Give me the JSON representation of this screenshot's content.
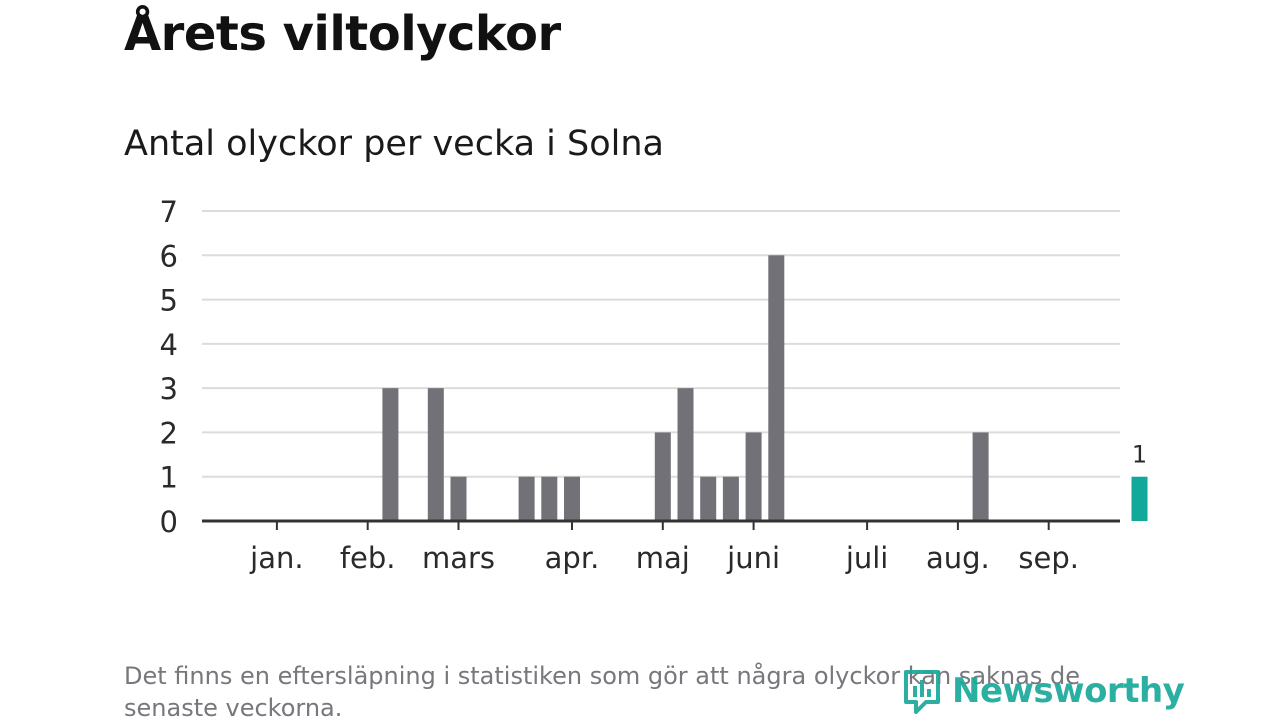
{
  "header": {
    "title": "Årets viltolyckor",
    "subtitle": "Antal olyckor per vecka i Solna"
  },
  "footer": {
    "note": "Det finns en eftersläpning i statistiken som gör att några olyckor kan saknas de senaste veckorna.",
    "logo_text": "Newsworthy"
  },
  "colors": {
    "bar": "#717177",
    "highlight": "#12a89a",
    "grid": "#dcdcdc",
    "axis": "#333333"
  },
  "chart_data": {
    "type": "bar",
    "x_unit": "week",
    "weeks": [
      1,
      2,
      3,
      4,
      5,
      6,
      7,
      8,
      9,
      10,
      11,
      12,
      13,
      14,
      15,
      16,
      17,
      18,
      19,
      20,
      21,
      22,
      23,
      24,
      25,
      26,
      27,
      28,
      29,
      30,
      31,
      32,
      33,
      34,
      35,
      36,
      37,
      38,
      39,
      40,
      41
    ],
    "values": [
      0,
      0,
      0,
      0,
      0,
      0,
      0,
      3,
      0,
      3,
      1,
      0,
      0,
      1,
      1,
      1,
      0,
      0,
      0,
      2,
      3,
      1,
      1,
      2,
      6,
      0,
      0,
      0,
      0,
      0,
      0,
      0,
      0,
      2,
      0,
      0,
      0,
      0,
      0,
      0,
      1
    ],
    "highlight_index": 40,
    "data_labels": [
      {
        "week": 41,
        "text": "1"
      }
    ],
    "y_ticks": [
      "0",
      "1",
      "2",
      "3",
      "4",
      "5",
      "6",
      "7"
    ],
    "ylim": [
      0,
      7
    ],
    "month_labels": [
      {
        "label": "jan.",
        "week": 3
      },
      {
        "label": "feb.",
        "week": 7
      },
      {
        "label": "mars",
        "week": 11
      },
      {
        "label": "apr.",
        "week": 16
      },
      {
        "label": "maj",
        "week": 20
      },
      {
        "label": "juni",
        "week": 24
      },
      {
        "label": "juli",
        "week": 29
      },
      {
        "label": "aug.",
        "week": 33
      },
      {
        "label": "sep.",
        "week": 37
      }
    ],
    "tick_weeks": [
      3,
      7,
      11,
      16,
      20,
      24,
      29,
      33,
      37
    ],
    "grid": true
  }
}
